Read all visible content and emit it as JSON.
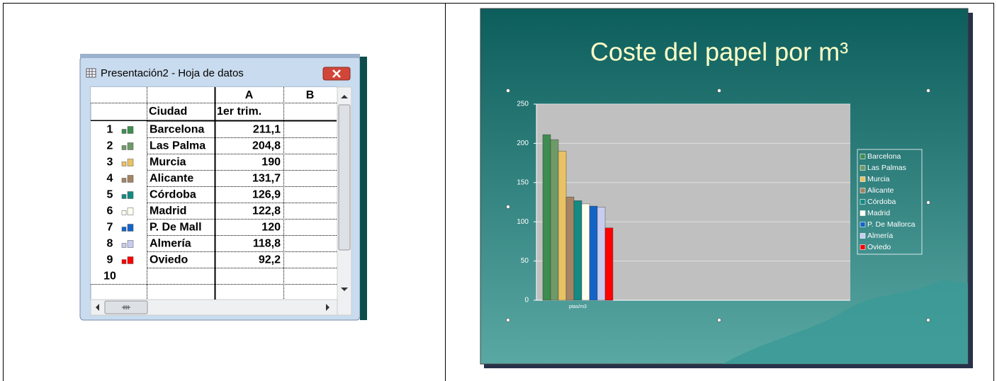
{
  "datasheet": {
    "title": "Presentación2 - Hoja de datos",
    "columns": [
      "A",
      "B"
    ],
    "header": [
      "Ciudad",
      "1er trim."
    ],
    "rows": [
      {
        "num": "1",
        "city": "Barcelona",
        "value": "211,1"
      },
      {
        "num": "2",
        "city": "Las Palma",
        "value": "204,8"
      },
      {
        "num": "3",
        "city": "Murcia",
        "value": "190"
      },
      {
        "num": "4",
        "city": "Alicante",
        "value": "131,7"
      },
      {
        "num": "5",
        "city": "Córdoba",
        "value": "126,9"
      },
      {
        "num": "6",
        "city": "Madrid",
        "value": "122,8"
      },
      {
        "num": "7",
        "city": "P. De Mall",
        "value": "120"
      },
      {
        "num": "8",
        "city": "Almería",
        "value": "118,8"
      },
      {
        "num": "9",
        "city": "Oviedo",
        "value": "92,2"
      },
      {
        "num": "10",
        "city": null,
        "value": null
      }
    ]
  },
  "chart_data": {
    "type": "bar",
    "title": "Coste del papel por m³",
    "categories": [
      "ptas/m3"
    ],
    "series": [
      {
        "name": "Barcelona",
        "color": "#3e8c50",
        "values": [
          211.1
        ]
      },
      {
        "name": "Las Palmas",
        "color": "#6e9a68",
        "values": [
          204.8
        ]
      },
      {
        "name": "Murcia",
        "color": "#e8c264",
        "values": [
          190
        ]
      },
      {
        "name": "Alicante",
        "color": "#a48464",
        "values": [
          131.7
        ]
      },
      {
        "name": "Córdoba",
        "color": "#138a82",
        "values": [
          126.9
        ]
      },
      {
        "name": "Madrid",
        "color": "#fffff0",
        "values": [
          122.8
        ]
      },
      {
        "name": "P. De Mallorca",
        "color": "#1464c8",
        "values": [
          120
        ]
      },
      {
        "name": "Almería",
        "color": "#c8cdf0",
        "values": [
          118.8
        ]
      },
      {
        "name": "Oviedo",
        "color": "#ff0000",
        "values": [
          92.2
        ]
      }
    ],
    "ylim": [
      0,
      250
    ],
    "yticks": [
      0,
      50,
      100,
      150,
      200,
      250
    ],
    "grid": true,
    "legend": "right"
  }
}
